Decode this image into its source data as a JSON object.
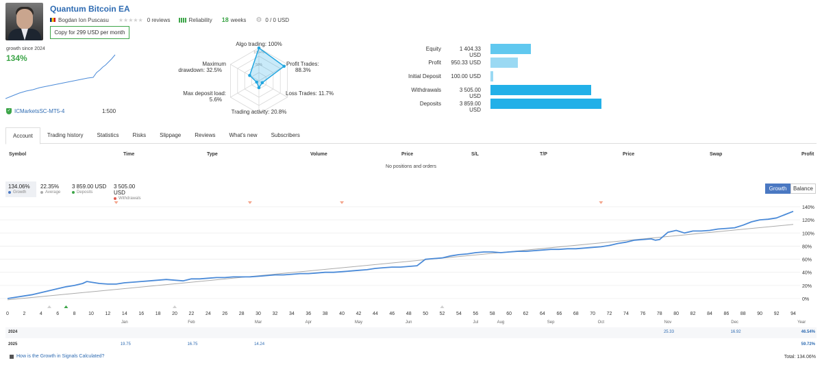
{
  "header": {
    "title": "Quantum Bitcoin EA",
    "author": "Bogdan Ion Puscasu",
    "reviews": "0 reviews",
    "reliability_label": "Reliability",
    "weeks_num": "18",
    "weeks_label": "weeks",
    "subscribers_funds": "0 / 0 USD",
    "copy_button": "Copy for 299 USD per month"
  },
  "growth": {
    "label": "growth since 2024",
    "value": "134%",
    "broker": "ICMarketsSC-MT5-4",
    "leverage": "1:500"
  },
  "radar": {
    "axes": [
      {
        "label": "Algo trading: 100%",
        "value": 100
      },
      {
        "label": "Profit Trades: 88.3%",
        "value": 88.3
      },
      {
        "label": "Loss Trades: 11.7%",
        "value": 11.7
      },
      {
        "label": "Trading activity: 20.8%",
        "value": 20.8
      },
      {
        "label": "Max deposit load: 5.6%",
        "value": 5.6
      },
      {
        "label": "Maximum drawdown: 32.5%",
        "value": 32.5
      }
    ],
    "ring_labels": [
      "100+%",
      "50%"
    ]
  },
  "account": [
    {
      "label": "Equity",
      "value": "1 404.33 USD",
      "amount": 1404.33,
      "color": "#60c8ef"
    },
    {
      "label": "Profit",
      "value": "950.33 USD",
      "amount": 950.33,
      "color": "#9ad9f3"
    },
    {
      "label": "Initial Deposit",
      "value": "100.00 USD",
      "amount": 100.0,
      "color": "#9ad9f3"
    },
    {
      "label": "Withdrawals",
      "value": "3 505.00 USD",
      "amount": 3505.0,
      "color": "#22b0e8"
    },
    {
      "label": "Deposits",
      "value": "3 859.00 USD",
      "amount": 3859.0,
      "color": "#22b0e8"
    }
  ],
  "tabs": [
    "Account",
    "Trading history",
    "Statistics",
    "Risks",
    "Slippage",
    "Reviews",
    "What's new",
    "Subscribers"
  ],
  "positions": {
    "columns": [
      "Symbol",
      "Time",
      "Type",
      "Volume",
      "Price",
      "S/L",
      "T/P",
      "Price",
      "Swap",
      "Profit"
    ],
    "empty_message": "No positions and orders"
  },
  "summary": [
    {
      "value": "134.06%",
      "label": "Growth",
      "color": "#4a78c2"
    },
    {
      "value": "22.35%",
      "label": "Average",
      "color": "#aaaaaa"
    },
    {
      "value": "3 859.00 USD",
      "label": "Deposits",
      "color": "#3ca548"
    },
    {
      "value": "3 505.00 USD",
      "label": "Withdrawals",
      "color": "#e05a4f"
    }
  ],
  "chart_toggle": {
    "growth": "Growth",
    "balance": "Balance"
  },
  "chart_data": {
    "type": "line",
    "x_ticks": [
      0,
      2,
      4,
      6,
      8,
      10,
      12,
      14,
      16,
      18,
      20,
      22,
      24,
      26,
      28,
      30,
      32,
      34,
      36,
      38,
      40,
      42,
      44,
      46,
      48,
      50,
      52,
      54,
      56,
      58,
      60,
      62,
      64,
      66,
      68,
      70,
      72,
      74,
      76,
      78,
      80,
      82,
      84,
      86,
      88,
      90,
      92,
      94
    ],
    "months": [
      {
        "label": "Jan",
        "x": 14
      },
      {
        "label": "Feb",
        "x": 22
      },
      {
        "label": "Mar",
        "x": 30
      },
      {
        "label": "Apr",
        "x": 36
      },
      {
        "label": "May",
        "x": 42
      },
      {
        "label": "Jun",
        "x": 48
      },
      {
        "label": "Jul",
        "x": 56
      },
      {
        "label": "Aug",
        "x": 59
      },
      {
        "label": "Sep",
        "x": 65
      },
      {
        "label": "Oct",
        "x": 71
      },
      {
        "label": "Nov",
        "x": 79
      },
      {
        "label": "Dec",
        "x": 87
      },
      {
        "label": "Year",
        "x": 95
      }
    ],
    "y_ticks": [
      "140%",
      "120%",
      "100%",
      "80%",
      "60%",
      "40%",
      "20%",
      "0%"
    ],
    "ylim": [
      0,
      140
    ],
    "xlim": [
      0,
      94
    ],
    "series": [
      {
        "name": "Growth",
        "color": "#4a8ad8",
        "points": [
          [
            0,
            0
          ],
          [
            2,
            4
          ],
          [
            3,
            6
          ],
          [
            4,
            9
          ],
          [
            5,
            12
          ],
          [
            6,
            15
          ],
          [
            7,
            18
          ],
          [
            8,
            20
          ],
          [
            9,
            23
          ],
          [
            9.5,
            26
          ],
          [
            10,
            25
          ],
          [
            11,
            23
          ],
          [
            12,
            22
          ],
          [
            13,
            22
          ],
          [
            14,
            24
          ],
          [
            15,
            25
          ],
          [
            16,
            26
          ],
          [
            17,
            27
          ],
          [
            18,
            28
          ],
          [
            19,
            29
          ],
          [
            20,
            28
          ],
          [
            21,
            27
          ],
          [
            22,
            30
          ],
          [
            23,
            30
          ],
          [
            24,
            31
          ],
          [
            25,
            32
          ],
          [
            26,
            32
          ],
          [
            27,
            33
          ],
          [
            28,
            33
          ],
          [
            29,
            33
          ],
          [
            30,
            34
          ],
          [
            31,
            35
          ],
          [
            32,
            36
          ],
          [
            33,
            36
          ],
          [
            34,
            37
          ],
          [
            35,
            38
          ],
          [
            36,
            38
          ],
          [
            37,
            39
          ],
          [
            38,
            40
          ],
          [
            39,
            40
          ],
          [
            40,
            41
          ],
          [
            41,
            42
          ],
          [
            42,
            43
          ],
          [
            43,
            44
          ],
          [
            44,
            46
          ],
          [
            45,
            47
          ],
          [
            46,
            48
          ],
          [
            47,
            48
          ],
          [
            48,
            49
          ],
          [
            49,
            50
          ],
          [
            50,
            60
          ],
          [
            51,
            61
          ],
          [
            52,
            62
          ],
          [
            53,
            65
          ],
          [
            54,
            67
          ],
          [
            55,
            68
          ],
          [
            56,
            70
          ],
          [
            57,
            71
          ],
          [
            58,
            71
          ],
          [
            59,
            70
          ],
          [
            60,
            71
          ],
          [
            61,
            72
          ],
          [
            62,
            72
          ],
          [
            63,
            73
          ],
          [
            64,
            74
          ],
          [
            65,
            75
          ],
          [
            66,
            75
          ],
          [
            67,
            76
          ],
          [
            68,
            76
          ],
          [
            69,
            77
          ],
          [
            70,
            78
          ],
          [
            71,
            79
          ],
          [
            72,
            81
          ],
          [
            73,
            84
          ],
          [
            74,
            86
          ],
          [
            75,
            89
          ],
          [
            76,
            90
          ],
          [
            77,
            91
          ],
          [
            77.5,
            89
          ],
          [
            78,
            90
          ],
          [
            79,
            101
          ],
          [
            80,
            104
          ],
          [
            81,
            100
          ],
          [
            82,
            103
          ],
          [
            83,
            103
          ],
          [
            84,
            104
          ],
          [
            85,
            106
          ],
          [
            86,
            107
          ],
          [
            87,
            108
          ],
          [
            88,
            112
          ],
          [
            89,
            117
          ],
          [
            90,
            120
          ],
          [
            91,
            121
          ],
          [
            92,
            123
          ],
          [
            93,
            128
          ],
          [
            94,
            133
          ]
        ]
      },
      {
        "name": "Average",
        "color": "#aaaaaa",
        "points": [
          [
            0,
            -2
          ],
          [
            94,
            113
          ]
        ]
      }
    ],
    "markers_down": [
      13,
      29,
      40,
      71
    ],
    "markers_up": [
      {
        "x": 5,
        "color": "#d0d0d0"
      },
      {
        "x": 7,
        "color": "#3ca548"
      },
      {
        "x": 20,
        "color": "#d0d0d0"
      },
      {
        "x": 52,
        "color": "#d0d0d0"
      }
    ]
  },
  "yearly": [
    {
      "year": "2024",
      "values": [
        {
          "x": 79,
          "v": "25.33"
        },
        {
          "x": 87,
          "v": "16.92"
        }
      ],
      "total": "46.54%"
    },
    {
      "year": "2025",
      "values": [
        {
          "x": 14,
          "v": "19.75"
        },
        {
          "x": 22,
          "v": "16.75"
        },
        {
          "x": 30,
          "v": "14.24"
        }
      ],
      "total": "59.72%"
    }
  ],
  "footer": {
    "help": "How is the Growth in Signals Calculated?",
    "total": "Total: 134.06%"
  }
}
